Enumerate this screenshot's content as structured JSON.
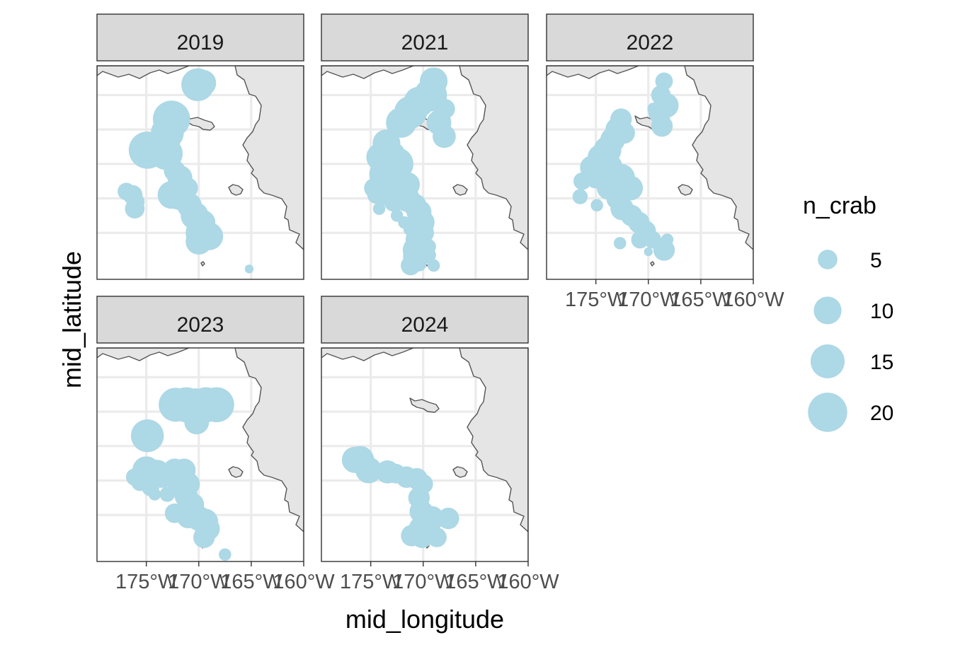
{
  "chart_data": {
    "type": "scatter",
    "subtype": "faceted bubble map",
    "xlabel": "mid_longitude",
    "ylabel": "mid_latitude",
    "x_ticks": [
      "175°W",
      "170°W",
      "165°W",
      "160°W"
    ],
    "legend": {
      "title": "n_crab",
      "entries": [
        {
          "label": "5",
          "value": 5
        },
        {
          "label": "10",
          "value": 10
        },
        {
          "label": "15",
          "value": 15
        },
        {
          "label": "20",
          "value": 20
        }
      ]
    },
    "colors": {
      "point": "#add8e6",
      "land": "#e5e5e5",
      "coast": "#555555",
      "grid": "#ebebeb",
      "strip": "#d9d9d9",
      "border": "#333333"
    },
    "facets": [
      {
        "label": "2019",
        "points": [
          {
            "x": -170.1,
            "y": 61.3,
            "n": 14
          },
          {
            "x": -169.6,
            "y": 61.35,
            "n": 9
          },
          {
            "x": -172.6,
            "y": 60.3,
            "n": 18
          },
          {
            "x": -173.0,
            "y": 59.9,
            "n": 14
          },
          {
            "x": -174.9,
            "y": 59.4,
            "n": 18
          },
          {
            "x": -173.1,
            "y": 59.3,
            "n": 14
          },
          {
            "x": -172.3,
            "y": 58.8,
            "n": 6
          },
          {
            "x": -171.8,
            "y": 58.6,
            "n": 8
          },
          {
            "x": -171.1,
            "y": 58.3,
            "n": 6
          },
          {
            "x": -172.6,
            "y": 58.1,
            "n": 10
          },
          {
            "x": -171.9,
            "y": 58.05,
            "n": 9
          },
          {
            "x": -170.9,
            "y": 57.8,
            "n": 8
          },
          {
            "x": -170.4,
            "y": 57.5,
            "n": 10
          },
          {
            "x": -169.6,
            "y": 57.3,
            "n": 8
          },
          {
            "x": -169.8,
            "y": 57.0,
            "n": 12
          },
          {
            "x": -169.0,
            "y": 56.9,
            "n": 10
          },
          {
            "x": -170.0,
            "y": 56.75,
            "n": 9
          },
          {
            "x": -176.9,
            "y": 58.2,
            "n": 4
          },
          {
            "x": -176.3,
            "y": 58.1,
            "n": 5
          },
          {
            "x": -176.0,
            "y": 57.9,
            "n": 4
          },
          {
            "x": -176.1,
            "y": 57.7,
            "n": 5
          },
          {
            "x": -165.2,
            "y": 55.95,
            "n": 1
          }
        ]
      },
      {
        "label": "2021",
        "points": [
          {
            "x": -169.0,
            "y": 61.4,
            "n": 10
          },
          {
            "x": -169.3,
            "y": 61.0,
            "n": 14
          },
          {
            "x": -170.4,
            "y": 60.8,
            "n": 12
          },
          {
            "x": -171.2,
            "y": 60.5,
            "n": 14
          },
          {
            "x": -172.1,
            "y": 60.2,
            "n": 12
          },
          {
            "x": -167.9,
            "y": 60.6,
            "n": 5
          },
          {
            "x": -168.5,
            "y": 60.2,
            "n": 8
          },
          {
            "x": -168.0,
            "y": 59.8,
            "n": 7
          },
          {
            "x": -173.5,
            "y": 59.6,
            "n": 10
          },
          {
            "x": -174.1,
            "y": 59.2,
            "n": 10
          },
          {
            "x": -173.2,
            "y": 59.2,
            "n": 14
          },
          {
            "x": -172.5,
            "y": 59.0,
            "n": 14
          },
          {
            "x": -173.7,
            "y": 58.7,
            "n": 12
          },
          {
            "x": -172.6,
            "y": 58.5,
            "n": 14
          },
          {
            "x": -171.5,
            "y": 58.4,
            "n": 8
          },
          {
            "x": -173.4,
            "y": 58.2,
            "n": 10
          },
          {
            "x": -171.6,
            "y": 58.0,
            "n": 9
          },
          {
            "x": -170.8,
            "y": 57.8,
            "n": 7
          },
          {
            "x": -170.4,
            "y": 57.6,
            "n": 8
          },
          {
            "x": -170.1,
            "y": 57.3,
            "n": 8
          },
          {
            "x": -170.0,
            "y": 57.0,
            "n": 6
          },
          {
            "x": -170.5,
            "y": 56.8,
            "n": 8
          },
          {
            "x": -170.7,
            "y": 56.5,
            "n": 9
          },
          {
            "x": -170.9,
            "y": 56.3,
            "n": 6
          },
          {
            "x": -169.5,
            "y": 56.6,
            "n": 3
          },
          {
            "x": -169.5,
            "y": 56.35,
            "n": 3
          },
          {
            "x": -171.2,
            "y": 56.05,
            "n": 5
          },
          {
            "x": -170.4,
            "y": 56.1,
            "n": 3
          },
          {
            "x": -169.0,
            "y": 56.05,
            "n": 2
          },
          {
            "x": -174.7,
            "y": 58.3,
            "n": 5
          },
          {
            "x": -174.5,
            "y": 58.1,
            "n": 4
          },
          {
            "x": -174.2,
            "y": 57.7,
            "n": 2
          },
          {
            "x": -172.5,
            "y": 57.5,
            "n": 2
          },
          {
            "x": -171.8,
            "y": 57.3,
            "n": 2
          },
          {
            "x": -171.3,
            "y": 57.1,
            "n": 2
          },
          {
            "x": -172.8,
            "y": 57.9,
            "n": 5
          }
        ]
      },
      {
        "label": "2022",
        "points": [
          {
            "x": -168.5,
            "y": 61.4,
            "n": 4
          },
          {
            "x": -168.8,
            "y": 61.0,
            "n": 5
          },
          {
            "x": -168.3,
            "y": 60.7,
            "n": 8
          },
          {
            "x": -168.9,
            "y": 60.5,
            "n": 7
          },
          {
            "x": -168.7,
            "y": 60.1,
            "n": 6
          },
          {
            "x": -169.5,
            "y": 60.6,
            "n": 2
          },
          {
            "x": -172.6,
            "y": 60.3,
            "n": 6
          },
          {
            "x": -172.9,
            "y": 60.0,
            "n": 8
          },
          {
            "x": -173.4,
            "y": 59.7,
            "n": 8
          },
          {
            "x": -172.3,
            "y": 59.9,
            "n": 6
          },
          {
            "x": -173.9,
            "y": 59.4,
            "n": 10
          },
          {
            "x": -174.6,
            "y": 59.2,
            "n": 8
          },
          {
            "x": -175.4,
            "y": 58.9,
            "n": 7
          },
          {
            "x": -173.7,
            "y": 58.9,
            "n": 9
          },
          {
            "x": -172.6,
            "y": 58.6,
            "n": 10
          },
          {
            "x": -175.0,
            "y": 58.6,
            "n": 6
          },
          {
            "x": -176.3,
            "y": 58.5,
            "n": 4
          },
          {
            "x": -173.8,
            "y": 58.3,
            "n": 7
          },
          {
            "x": -171.7,
            "y": 58.3,
            "n": 8
          },
          {
            "x": -172.9,
            "y": 58.0,
            "n": 7
          },
          {
            "x": -172.5,
            "y": 57.7,
            "n": 7
          },
          {
            "x": -171.6,
            "y": 57.5,
            "n": 6
          },
          {
            "x": -170.9,
            "y": 57.3,
            "n": 6
          },
          {
            "x": -170.3,
            "y": 57.05,
            "n": 6
          },
          {
            "x": -170.8,
            "y": 56.8,
            "n": 4
          },
          {
            "x": -169.6,
            "y": 56.8,
            "n": 4
          },
          {
            "x": -168.5,
            "y": 56.5,
            "n": 6
          },
          {
            "x": -176.5,
            "y": 58.05,
            "n": 3
          },
          {
            "x": -174.9,
            "y": 57.8,
            "n": 2
          },
          {
            "x": -172.7,
            "y": 56.7,
            "n": 2
          },
          {
            "x": -170.0,
            "y": 56.45,
            "n": 1
          },
          {
            "x": -168.2,
            "y": 56.8,
            "n": 2
          }
        ]
      },
      {
        "label": "2023",
        "points": [
          {
            "x": -172.2,
            "y": 60.2,
            "n": 15
          },
          {
            "x": -171.2,
            "y": 60.2,
            "n": 16
          },
          {
            "x": -170.3,
            "y": 60.2,
            "n": 14
          },
          {
            "x": -169.3,
            "y": 60.2,
            "n": 16
          },
          {
            "x": -168.3,
            "y": 60.2,
            "n": 16
          },
          {
            "x": -170.2,
            "y": 59.7,
            "n": 8
          },
          {
            "x": -174.9,
            "y": 59.3,
            "n": 14
          },
          {
            "x": -175.0,
            "y": 58.3,
            "n": 10
          },
          {
            "x": -174.0,
            "y": 58.2,
            "n": 10
          },
          {
            "x": -173.5,
            "y": 58.1,
            "n": 6
          },
          {
            "x": -176.1,
            "y": 58.1,
            "n": 4
          },
          {
            "x": -175.6,
            "y": 57.95,
            "n": 4
          },
          {
            "x": -174.6,
            "y": 57.8,
            "n": 4
          },
          {
            "x": -172.3,
            "y": 58.3,
            "n": 7
          },
          {
            "x": -171.4,
            "y": 58.3,
            "n": 7
          },
          {
            "x": -171.0,
            "y": 57.9,
            "n": 7
          },
          {
            "x": -172.0,
            "y": 57.8,
            "n": 5
          },
          {
            "x": -171.2,
            "y": 57.55,
            "n": 7
          },
          {
            "x": -170.6,
            "y": 57.3,
            "n": 7
          },
          {
            "x": -172.3,
            "y": 57.05,
            "n": 5
          },
          {
            "x": -171.0,
            "y": 56.95,
            "n": 7
          },
          {
            "x": -170.0,
            "y": 56.9,
            "n": 8
          },
          {
            "x": -169.4,
            "y": 56.8,
            "n": 9
          },
          {
            "x": -169.1,
            "y": 56.6,
            "n": 7
          },
          {
            "x": -169.5,
            "y": 56.35,
            "n": 6
          },
          {
            "x": -167.5,
            "y": 55.85,
            "n": 2
          },
          {
            "x": -173.0,
            "y": 57.6,
            "n": 3
          },
          {
            "x": -174.2,
            "y": 57.6,
            "n": 2
          }
        ]
      },
      {
        "label": "2024",
        "points": [
          {
            "x": -176.5,
            "y": 58.6,
            "n": 9
          },
          {
            "x": -176.0,
            "y": 58.6,
            "n": 10
          },
          {
            "x": -175.2,
            "y": 58.3,
            "n": 9
          },
          {
            "x": -173.4,
            "y": 58.25,
            "n": 7
          },
          {
            "x": -172.6,
            "y": 58.2,
            "n": 5
          },
          {
            "x": -171.6,
            "y": 58.1,
            "n": 6
          },
          {
            "x": -170.6,
            "y": 58.05,
            "n": 6
          },
          {
            "x": -170.0,
            "y": 57.9,
            "n": 5
          },
          {
            "x": -170.4,
            "y": 57.5,
            "n": 6
          },
          {
            "x": -170.2,
            "y": 57.1,
            "n": 7
          },
          {
            "x": -169.2,
            "y": 56.9,
            "n": 8
          },
          {
            "x": -167.6,
            "y": 56.9,
            "n": 6
          },
          {
            "x": -170.2,
            "y": 56.6,
            "n": 8
          },
          {
            "x": -171.1,
            "y": 56.4,
            "n": 6
          },
          {
            "x": -170.1,
            "y": 56.35,
            "n": 6
          },
          {
            "x": -168.7,
            "y": 56.35,
            "n": 5
          }
        ]
      }
    ]
  }
}
